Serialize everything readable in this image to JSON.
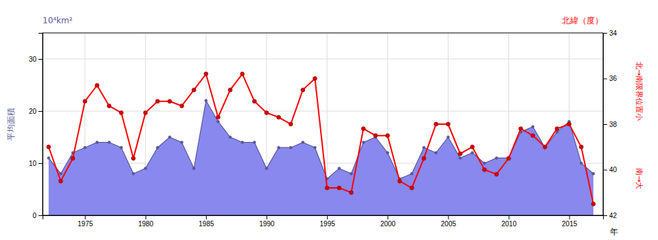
{
  "chart_data": {
    "type": "line",
    "x": [
      1972,
      1973,
      1974,
      1975,
      1976,
      1977,
      1978,
      1979,
      1980,
      1981,
      1982,
      1983,
      1984,
      1985,
      1986,
      1987,
      1988,
      1989,
      1990,
      1991,
      1992,
      1993,
      1994,
      1995,
      1996,
      1997,
      1998,
      1999,
      2000,
      2001,
      2002,
      2003,
      2004,
      2005,
      2006,
      2007,
      2008,
      2009,
      2010,
      2011,
      2012,
      2013,
      2014,
      2015,
      2016,
      2017
    ],
    "series": [
      {
        "type": "area",
        "color": "#8888ee",
        "marker": "circle",
        "values": [
          11,
          8,
          12,
          13,
          14,
          14,
          13,
          8,
          9,
          13,
          15,
          14,
          9,
          22,
          18,
          15,
          14,
          14,
          9,
          13,
          13,
          14,
          13,
          7,
          9,
          8,
          14,
          15,
          12,
          7,
          8,
          13,
          12,
          15,
          11,
          12,
          10,
          11,
          11,
          16,
          17,
          13,
          16,
          18,
          10,
          8
        ]
      },
      {
        "type": "line",
        "axis": "y2",
        "color": "#ff0000",
        "marker": "circle",
        "values": [
          39.0,
          40.5,
          39.5,
          37.0,
          36.3,
          37.2,
          37.5,
          39.5,
          37.5,
          37.0,
          37.0,
          37.2,
          36.5,
          35.8,
          37.7,
          36.5,
          35.8,
          37.0,
          37.5,
          37.7,
          38.0,
          36.5,
          36.0,
          40.8,
          40.8,
          41.0,
          38.2,
          38.5,
          38.5,
          40.5,
          40.8,
          39.5,
          38.0,
          38.0,
          39.3,
          39.0,
          40.0,
          40.2,
          39.5,
          38.2,
          38.5,
          39.0,
          38.2,
          38.0,
          39.0,
          41.5
        ]
      }
    ],
    "xlabel": "年",
    "ylabel": "平均面積",
    "y2label": "北緯（度）",
    "annotations": [
      "10⁴km²",
      "北→南限界位置小",
      "南→大"
    ],
    "xlim": [
      1971.5,
      2017.8
    ],
    "xticks": [
      1975,
      1980,
      1985,
      1990,
      1995,
      2000,
      2005,
      2010,
      2015
    ],
    "ylim": [
      0,
      35
    ],
    "yticks": [
      0,
      10,
      20,
      30
    ],
    "y2lim": [
      42,
      34
    ],
    "y2ticks": [
      34,
      36,
      38,
      40,
      42
    ],
    "grid": true
  }
}
